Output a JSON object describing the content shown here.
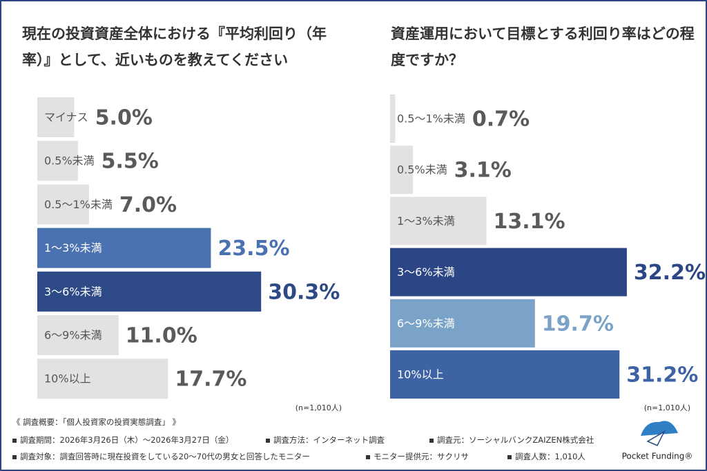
{
  "chart_data": [
    {
      "type": "bar",
      "orientation": "horizontal",
      "title": "現在の投資資産全体における『平均利回り（年率）』として、近いものを教えてください",
      "categories": [
        "マイナス",
        "0.5%未満",
        "0.5～1%未満",
        "1～3%未満",
        "3～6%未満",
        "6～9%未満",
        "10%以上"
      ],
      "values": [
        5.0,
        5.5,
        7.0,
        23.5,
        30.3,
        11.0,
        17.7
      ],
      "value_labels": [
        "5.0%",
        "5.5%",
        "7.0%",
        "23.5%",
        "30.3%",
        "11.0%",
        "17.7%"
      ],
      "colors": [
        "#e2e2e2",
        "#e2e2e2",
        "#e2e2e2",
        "#4a72b0",
        "#2e4a86",
        "#e2e2e2",
        "#e2e2e2"
      ],
      "note": "(n=1,010人)"
    },
    {
      "type": "bar",
      "orientation": "horizontal",
      "title": "資産運用において目標とする利回り率はどの程度ですか？",
      "categories": [
        "0.5～1%未満",
        "0.5%未満",
        "1～3%未満",
        "3～6%未満",
        "6～9%未満",
        "10%以上"
      ],
      "values": [
        0.7,
        3.1,
        13.1,
        32.2,
        19.7,
        31.2
      ],
      "value_labels": [
        "0.7%",
        "3.1%",
        "13.1%",
        "32.2%",
        "19.7%",
        "31.2%"
      ],
      "colors": [
        "#e2e2e2",
        "#e2e2e2",
        "#e2e2e2",
        "#2b4585",
        "#7ba3c8",
        "#3d63a5"
      ],
      "note": "(n=1,010人)"
    }
  ],
  "footer": {
    "heading": "《 調査概要：「個人投資家の投資実態調査」 》",
    "rows": [
      [
        "調査期間：2026年3月26日（木）～2026年3月27日（金）",
        "調査方法：インターネット調査",
        "調査元：ソーシャルバンクZAIZEN株式会社"
      ],
      [
        "調査対象：調査回答時に現在投資をしている20～70代の男女と回答したモニター",
        "モニター提供元：サクリサ",
        "調査人数：1,010人"
      ]
    ],
    "logo": "Pocket Funding®"
  }
}
